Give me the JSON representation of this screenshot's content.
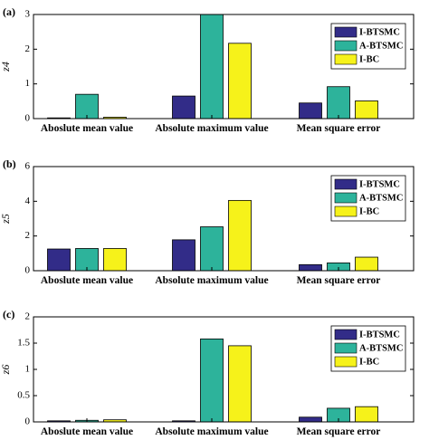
{
  "colors": {
    "I-BTSMC": "#322c88",
    "A-BTSMC": "#2db39b",
    "I-BC": "#f6f21a"
  },
  "chart_data": [
    {
      "type": "bar",
      "panel_label": "(a)",
      "ylabel": "z4",
      "ylim": [
        0,
        3
      ],
      "yticks": [
        "0",
        "1",
        "2",
        "3"
      ],
      "categories": [
        "Aboslute mean value",
        "Absolute maximum value",
        "Mean square error"
      ],
      "legend_position": "top-right",
      "series": [
        {
          "name": "I-BTSMC",
          "values": [
            0.02,
            0.65,
            0.45
          ]
        },
        {
          "name": "A-BTSMC",
          "values": [
            0.7,
            3.0,
            0.92
          ]
        },
        {
          "name": "I-BC",
          "values": [
            0.04,
            2.17,
            0.51
          ]
        }
      ]
    },
    {
      "type": "bar",
      "panel_label": "(b)",
      "ylabel": "z5",
      "ylim": [
        0,
        6
      ],
      "yticks": [
        "0",
        "2",
        "4",
        "6"
      ],
      "categories": [
        "Aboslute mean value",
        "Absolute maximum value",
        "Mean square error"
      ],
      "legend_position": "top-right",
      "series": [
        {
          "name": "I-BTSMC",
          "values": [
            1.25,
            1.78,
            0.35
          ]
        },
        {
          "name": "A-BTSMC",
          "values": [
            1.28,
            2.53,
            0.45
          ]
        },
        {
          "name": "I-BC",
          "values": [
            1.28,
            4.05,
            0.78
          ]
        }
      ]
    },
    {
      "type": "bar",
      "panel_label": "(c)",
      "ylabel": "z6",
      "ylim": [
        0,
        2
      ],
      "yticks": [
        "0",
        "0.5",
        "1",
        "1.5",
        "2"
      ],
      "categories": [
        "Aboslute mean value",
        "Absolute maximum value",
        "Mean square error"
      ],
      "legend_position": "top-right",
      "series": [
        {
          "name": "I-BTSMC",
          "values": [
            0.02,
            0.02,
            0.09
          ]
        },
        {
          "name": "A-BTSMC",
          "values": [
            0.03,
            1.58,
            0.26
          ]
        },
        {
          "name": "I-BC",
          "values": [
            0.04,
            1.45,
            0.29
          ]
        }
      ]
    }
  ]
}
